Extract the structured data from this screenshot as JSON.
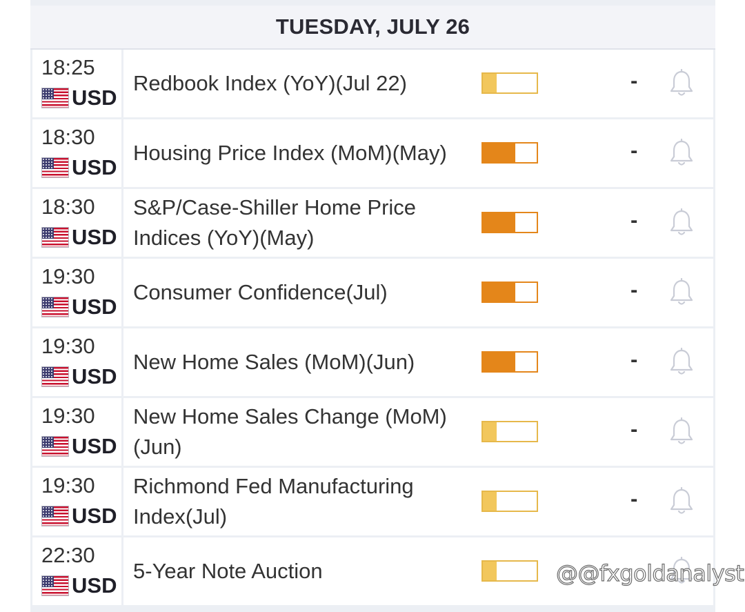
{
  "header": {
    "date": "TUESDAY, JULY 26"
  },
  "colors": {
    "low_impact": "#f2c75c",
    "medium_impact": "#e4861a",
    "row_bg": "#ffffff",
    "grid": "#eceff4"
  },
  "events": [
    {
      "time": "18:25",
      "currency": "USD",
      "flag_icon": "us-flag-icon",
      "name": "Redbook Index (YoY)(Jul 22)",
      "impact": "low",
      "impact_level": 0.25,
      "actual": "-",
      "alert_icon": "bell-icon"
    },
    {
      "time": "18:30",
      "currency": "USD",
      "flag_icon": "us-flag-icon",
      "name": "Housing Price Index (MoM)(May)",
      "impact": "medium",
      "impact_level": 0.6,
      "actual": "-",
      "alert_icon": "bell-icon"
    },
    {
      "time": "18:30",
      "currency": "USD",
      "flag_icon": "us-flag-icon",
      "name": "S&P/Case-Shiller Home Price Indices (YoY)(May)",
      "impact": "medium",
      "impact_level": 0.6,
      "actual": "-",
      "alert_icon": "bell-icon"
    },
    {
      "time": "19:30",
      "currency": "USD",
      "flag_icon": "us-flag-icon",
      "name": "Consumer Confidence(Jul)",
      "impact": "medium",
      "impact_level": 0.6,
      "actual": "-",
      "alert_icon": "bell-icon"
    },
    {
      "time": "19:30",
      "currency": "USD",
      "flag_icon": "us-flag-icon",
      "name": "New Home Sales (MoM)(Jun)",
      "impact": "medium",
      "impact_level": 0.6,
      "actual": "-",
      "alert_icon": "bell-icon"
    },
    {
      "time": "19:30",
      "currency": "USD",
      "flag_icon": "us-flag-icon",
      "name": "New Home Sales Change (MoM)(Jun)",
      "impact": "low",
      "impact_level": 0.25,
      "actual": "-",
      "alert_icon": "bell-icon"
    },
    {
      "time": "19:30",
      "currency": "USD",
      "flag_icon": "us-flag-icon",
      "name": "Richmond Fed Manufacturing Index(Jul)",
      "impact": "low",
      "impact_level": 0.25,
      "actual": "-",
      "alert_icon": "bell-icon"
    },
    {
      "time": "22:30",
      "currency": "USD",
      "flag_icon": "us-flag-icon",
      "name": "5-Year Note Auction",
      "impact": "low",
      "impact_level": 0.25,
      "actual": "",
      "alert_icon": "bell-icon"
    }
  ],
  "watermark": "@fxgoldanalyst",
  "watermark_icon": "threads-logo-icon"
}
